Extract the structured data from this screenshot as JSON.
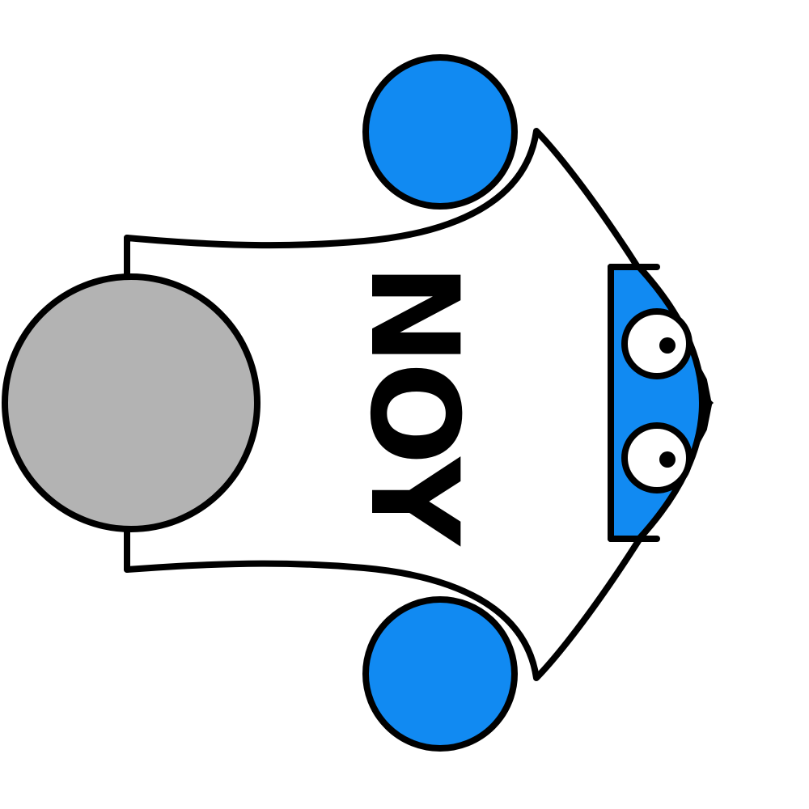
{
  "character": {
    "body_label": "NOY",
    "colors": {
      "accent": "#118af2",
      "head": "#b3b3b3",
      "outline": "#000000",
      "background": "#ffffff",
      "body": "#ffffff",
      "eye_white": "#ffffff"
    },
    "icons": {
      "head": "gray-circle-head",
      "hands": "blue-circle-hand",
      "feet": "blue-shoe-with-eyes"
    }
  }
}
